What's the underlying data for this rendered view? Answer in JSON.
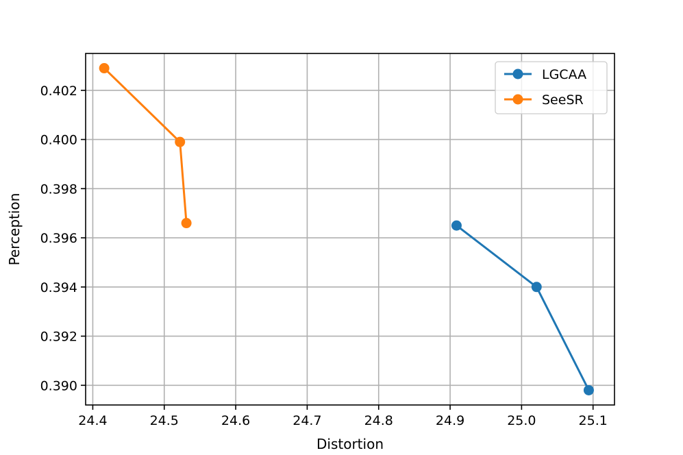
{
  "chart_data": {
    "type": "line",
    "title": "",
    "xlabel": "Distortion",
    "ylabel": "Perception",
    "xlim": [
      24.39,
      25.13
    ],
    "ylim": [
      0.3892,
      0.4035
    ],
    "xticks": [
      24.4,
      24.5,
      24.6,
      24.7,
      24.8,
      24.9,
      25.0,
      25.1
    ],
    "xtick_labels": [
      "24.4",
      "24.5",
      "24.6",
      "24.7",
      "24.8",
      "24.9",
      "25.0",
      "25.1"
    ],
    "yticks": [
      0.39,
      0.392,
      0.394,
      0.396,
      0.398,
      0.4,
      0.402
    ],
    "ytick_labels": [
      "0.390",
      "0.392",
      "0.394",
      "0.396",
      "0.398",
      "0.400",
      "0.402"
    ],
    "grid": true,
    "legend": "top-right",
    "series": [
      {
        "name": "LGCAA",
        "color": "#1f77b4",
        "marker": "circle",
        "x": [
          24.909,
          25.021,
          25.094
        ],
        "y": [
          0.3965,
          0.394,
          0.3898
        ]
      },
      {
        "name": "SeeSR",
        "color": "#ff7f0e",
        "marker": "circle",
        "x": [
          24.416,
          24.522,
          24.531
        ],
        "y": [
          0.4029,
          0.3999,
          0.3966
        ]
      }
    ]
  }
}
